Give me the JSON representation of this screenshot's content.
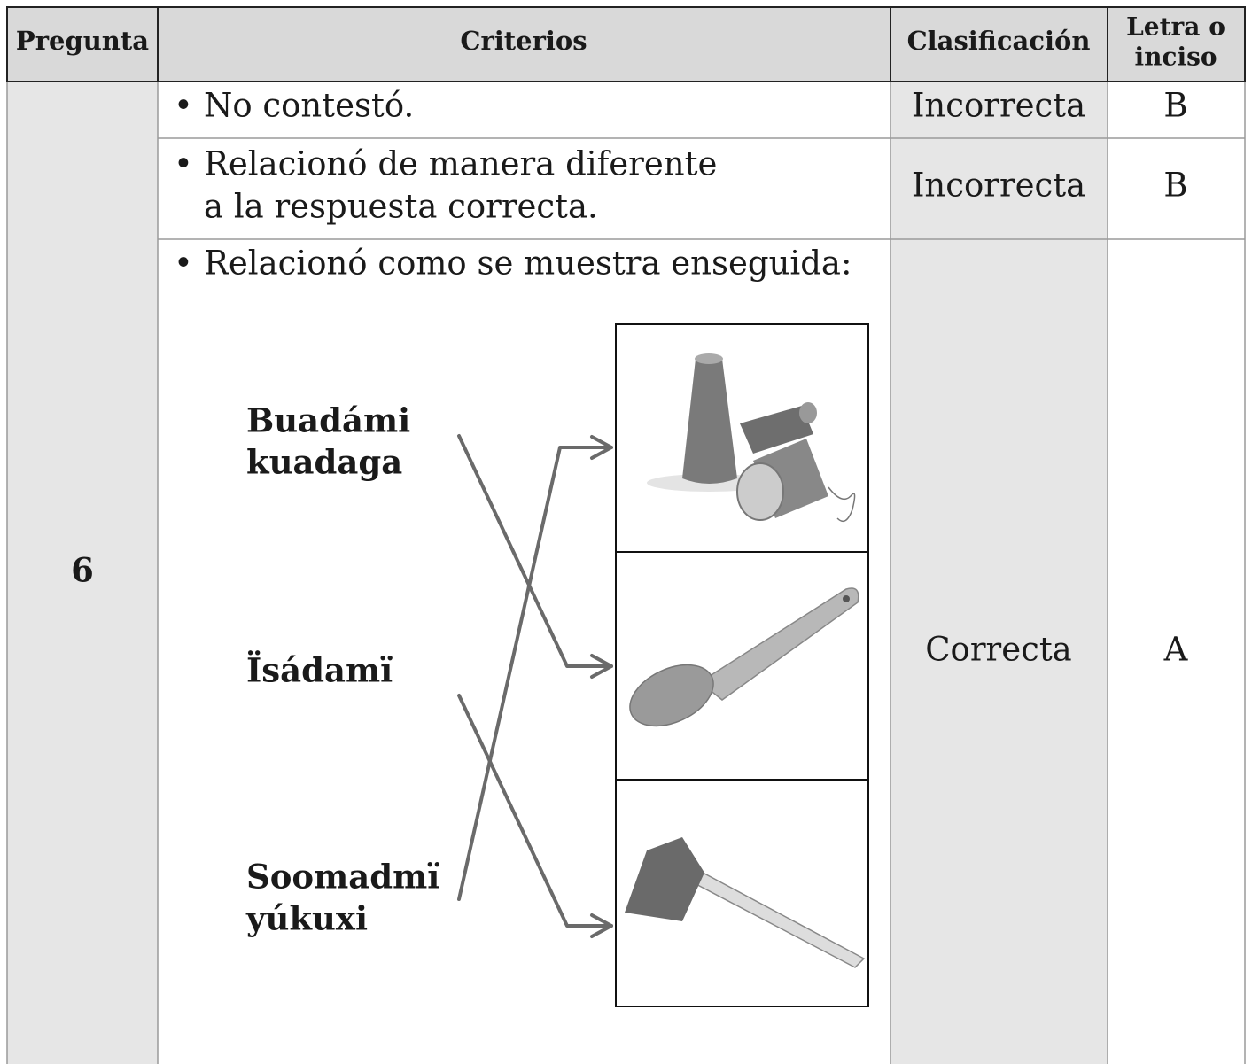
{
  "table": {
    "headers": [
      [
        "Pregunta"
      ],
      [
        "Criterios"
      ],
      [
        "Clasificación"
      ],
      [
        "Letra o",
        "inciso"
      ]
    ],
    "question": "6",
    "rows": [
      {
        "criterion": [
          "No contestó."
        ],
        "classification": "Incorrecta",
        "letter": "B"
      },
      {
        "criterion": [
          "Relacionó de manera diferente",
          "a la respuesta correcta."
        ],
        "classification": "Incorrecta",
        "letter": "B"
      },
      {
        "criterion": [
          "Relacionó como se muestra enseguida:"
        ],
        "classification": "Correcta",
        "letter": "A"
      }
    ]
  },
  "matching": {
    "words": [
      [
        "Buadámi",
        "kuadaga"
      ],
      [
        "Ïsádamï"
      ],
      [
        "Soomadmï",
        "yúkuxi"
      ]
    ]
  }
}
